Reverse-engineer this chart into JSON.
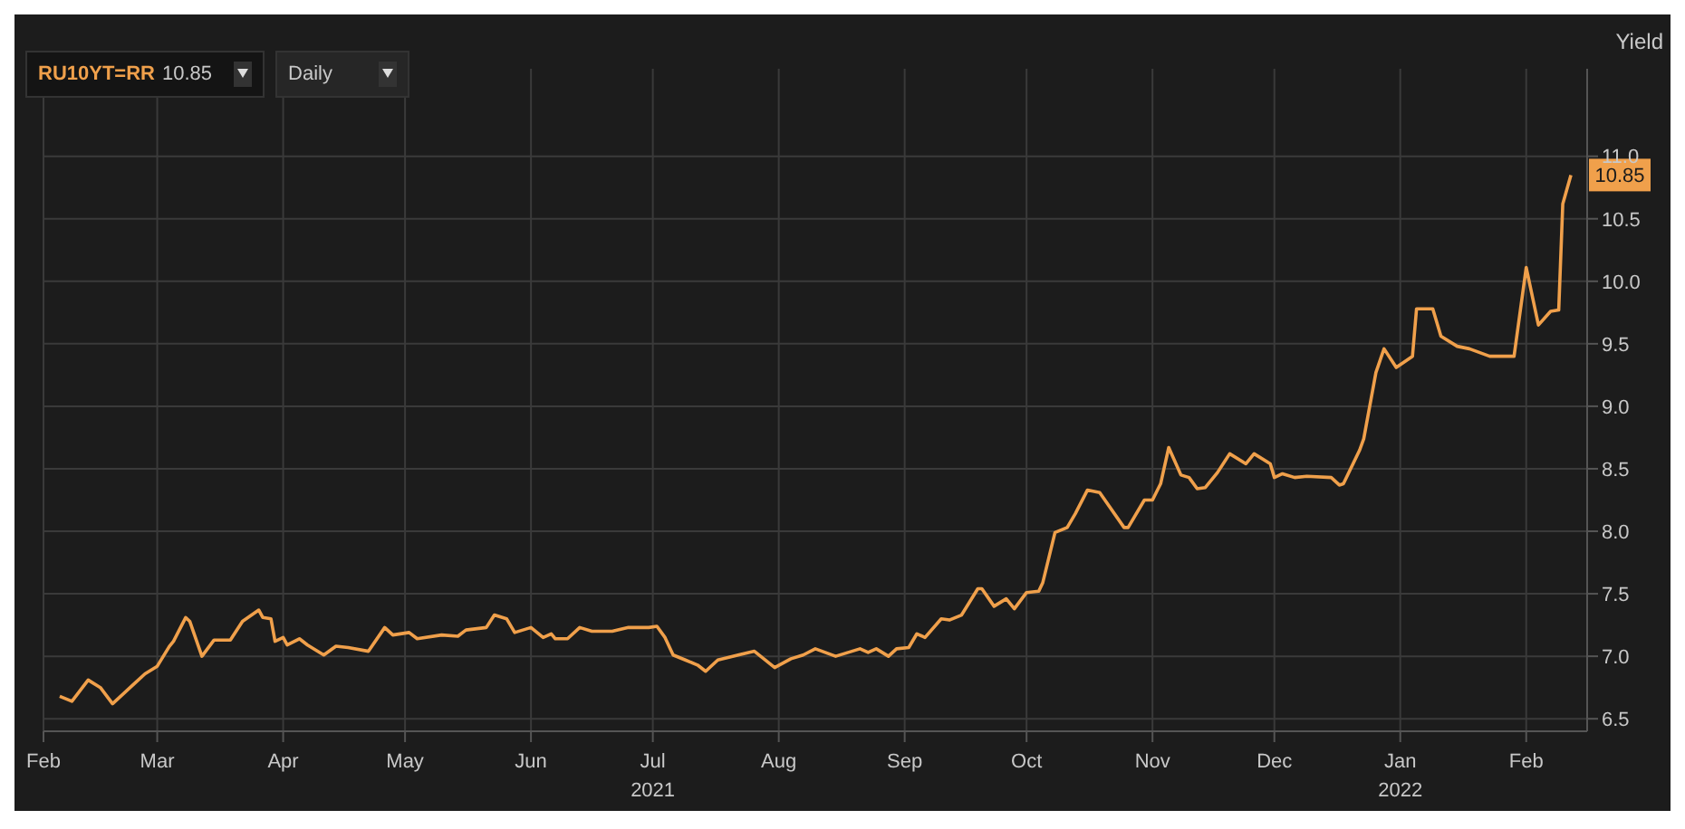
{
  "chart_data": {
    "type": "line",
    "ylabel": "Yield",
    "annotations": [
      "RU10YT=RR",
      "10.85",
      "Daily",
      {
        "text": "10.85",
        "x": "2022-02-12",
        "y": 10.85
      }
    ],
    "x": [
      "2021-02-05",
      "2021-02-08",
      "2021-02-12",
      "2021-02-15",
      "2021-02-18",
      "2021-02-23",
      "2021-02-26",
      "2021-03-01",
      "2021-03-04",
      "2021-03-05",
      "2021-03-08",
      "2021-03-09",
      "2021-03-12",
      "2021-03-15",
      "2021-03-19",
      "2021-03-22",
      "2021-03-26",
      "2021-03-27",
      "2021-03-29",
      "2021-03-30",
      "2021-04-01",
      "2021-04-02",
      "2021-04-05",
      "2021-04-07",
      "2021-04-11",
      "2021-04-14",
      "2021-04-17",
      "2021-04-22",
      "2021-04-26",
      "2021-04-28",
      "2021-05-02",
      "2021-05-04",
      "2021-05-10",
      "2021-05-14",
      "2021-05-16",
      "2021-05-21",
      "2021-05-23",
      "2021-05-26",
      "2021-05-28",
      "2021-06-01",
      "2021-06-04",
      "2021-06-06",
      "2021-06-07",
      "2021-06-10",
      "2021-06-13",
      "2021-06-16",
      "2021-06-21",
      "2021-06-25",
      "2021-06-30",
      "2021-07-02",
      "2021-07-04",
      "2021-07-06",
      "2021-07-09",
      "2021-07-12",
      "2021-07-14",
      "2021-07-17",
      "2021-07-22",
      "2021-07-26",
      "2021-07-31",
      "2021-08-04",
      "2021-08-07",
      "2021-08-10",
      "2021-08-15",
      "2021-08-19",
      "2021-08-21",
      "2021-08-23",
      "2021-08-25",
      "2021-08-28",
      "2021-08-30",
      "2021-09-02",
      "2021-09-04",
      "2021-09-06",
      "2021-09-10",
      "2021-09-12",
      "2021-09-15",
      "2021-09-19",
      "2021-09-20",
      "2021-09-23",
      "2021-09-26",
      "2021-09-28",
      "2021-10-01",
      "2021-10-04",
      "2021-10-05",
      "2021-10-08",
      "2021-10-11",
      "2021-10-13",
      "2021-10-16",
      "2021-10-19",
      "2021-10-25",
      "2021-10-26",
      "2021-10-30",
      "2021-11-01",
      "2021-11-03",
      "2021-11-05",
      "2021-11-08",
      "2021-11-10",
      "2021-11-12",
      "2021-11-14",
      "2021-11-17",
      "2021-11-20",
      "2021-11-24",
      "2021-11-26",
      "2021-11-30",
      "2021-12-01",
      "2021-12-03",
      "2021-12-06",
      "2021-12-09",
      "2021-12-15",
      "2021-12-17",
      "2021-12-18",
      "2021-12-22",
      "2021-12-23",
      "2021-12-26",
      "2021-12-28",
      "2021-12-31",
      "2022-01-04",
      "2022-01-05",
      "2022-01-09",
      "2022-01-11",
      "2022-01-15",
      "2022-01-18",
      "2022-01-23",
      "2022-01-29",
      "2022-02-01",
      "2022-02-04",
      "2022-02-07",
      "2022-02-09",
      "2022-02-10",
      "2022-02-12"
    ],
    "series": [
      {
        "color": "#f0a04b",
        "values": [
          6.68,
          6.64,
          6.81,
          6.75,
          6.62,
          6.77,
          6.86,
          6.92,
          7.08,
          7.12,
          7.31,
          7.28,
          7.0,
          7.13,
          7.13,
          7.28,
          7.37,
          7.31,
          7.3,
          7.12,
          7.15,
          7.09,
          7.14,
          7.09,
          7.01,
          7.08,
          7.07,
          7.04,
          7.23,
          7.17,
          7.19,
          7.14,
          7.17,
          7.16,
          7.21,
          7.23,
          7.33,
          7.3,
          7.19,
          7.23,
          7.15,
          7.18,
          7.14,
          7.14,
          7.23,
          7.2,
          7.2,
          7.23,
          7.23,
          7.24,
          7.15,
          7.01,
          6.97,
          6.93,
          6.88,
          6.97,
          7.01,
          7.04,
          6.91,
          6.98,
          7.01,
          7.06,
          7.0,
          7.04,
          7.06,
          7.03,
          7.06,
          7.0,
          7.06,
          7.07,
          7.18,
          7.15,
          7.3,
          7.29,
          7.33,
          7.54,
          7.54,
          7.4,
          7.46,
          7.38,
          7.51,
          7.52,
          7.59,
          7.99,
          8.03,
          8.14,
          8.33,
          8.31,
          8.03,
          8.03,
          8.25,
          8.25,
          8.38,
          8.67,
          8.45,
          8.43,
          8.34,
          8.35,
          8.47,
          8.62,
          8.54,
          8.62,
          8.54,
          8.43,
          8.46,
          8.43,
          8.44,
          8.43,
          8.37,
          8.38,
          8.65,
          8.74,
          9.27,
          9.46,
          9.31,
          9.4,
          9.78,
          9.78,
          9.56,
          9.48,
          9.46,
          9.4,
          9.4,
          10.11,
          9.65,
          9.76,
          9.77,
          10.62,
          10.85
        ]
      }
    ],
    "xlim": [
      "2021-02-01",
      "2022-02-16"
    ],
    "xticks": [
      {
        "value": "2021-02-01",
        "label": "Feb"
      },
      {
        "value": "2021-03-01",
        "label": "Mar"
      },
      {
        "value": "2021-04-01",
        "label": "Apr"
      },
      {
        "value": "2021-05-01",
        "label": "May"
      },
      {
        "value": "2021-06-01",
        "label": "Jun"
      },
      {
        "value": "2021-07-01",
        "label": "Jul\n2021"
      },
      {
        "value": "2021-08-01",
        "label": "Aug"
      },
      {
        "value": "2021-09-01",
        "label": "Sep"
      },
      {
        "value": "2021-10-01",
        "label": "Oct"
      },
      {
        "value": "2021-11-01",
        "label": "Nov"
      },
      {
        "value": "2021-12-01",
        "label": "Dec"
      },
      {
        "value": "2022-01-01",
        "label": "Jan\n2022"
      },
      {
        "value": "2022-02-01",
        "label": "Feb"
      }
    ],
    "ylim": [
      6.4,
      11.7
    ],
    "yticks": [
      {
        "value": 6.5,
        "label": "6.5"
      },
      {
        "value": 7,
        "label": "7.0"
      },
      {
        "value": 7.5,
        "label": "7.5"
      },
      {
        "value": 8,
        "label": "8.0"
      },
      {
        "value": 8.5,
        "label": "8.5"
      },
      {
        "value": 9,
        "label": "9.0"
      },
      {
        "value": 9.5,
        "label": "9.5"
      },
      {
        "value": 10,
        "label": "10.0"
      },
      {
        "value": 10.5,
        "label": "10.5"
      },
      {
        "value": 11,
        "label": "11.0"
      }
    ],
    "grid": true,
    "marker": "none",
    "line_style": "solid",
    "legend": false
  }
}
